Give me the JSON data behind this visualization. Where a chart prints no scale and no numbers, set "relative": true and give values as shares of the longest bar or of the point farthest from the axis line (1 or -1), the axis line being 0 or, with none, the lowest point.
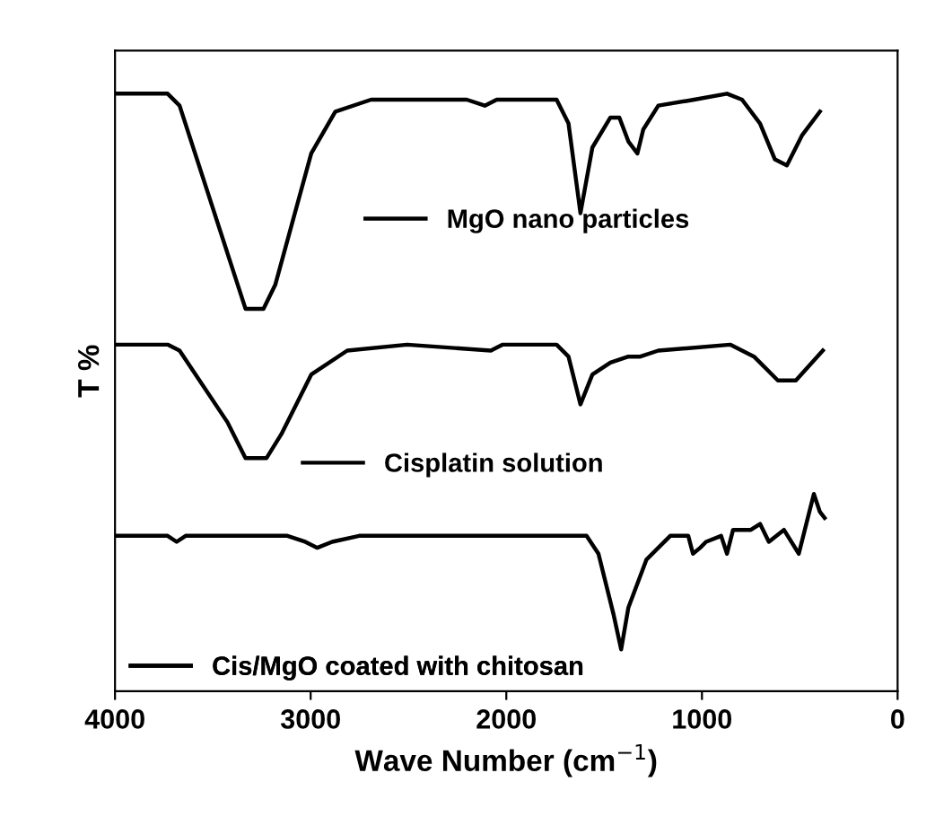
{
  "chart_data": {
    "type": "line",
    "relative": true,
    "xlabel": "Wave Number (cm$^{−1}$)",
    "ylabel": "T %",
    "xlim": [
      4000,
      0
    ],
    "xticks": [
      4000,
      3000,
      2000,
      1000,
      0
    ],
    "tick_labels": "x",
    "grid": false,
    "legend": "center",
    "line_style": "solid",
    "marker": "none",
    "series": [
      {
        "name": "MgO nano particles",
        "color": "#000000",
        "x": [
          3991,
          3731,
          3670,
          3333,
          3241,
          3181,
          2997,
          2874,
          2691,
          2507,
          2202,
          2110,
          2049,
          1835,
          1743,
          1682,
          1621,
          1560,
          1468,
          1422,
          1376,
          1330,
          1300,
          1223,
          1040,
          872,
          795,
          703,
          627,
          566,
          489,
          397
        ],
        "values": [
          1.0,
          1.0,
          0.98,
          0.64,
          0.64,
          0.68,
          0.9,
          0.97,
          0.99,
          0.99,
          0.99,
          0.98,
          0.99,
          0.99,
          0.99,
          0.95,
          0.8,
          0.91,
          0.96,
          0.96,
          0.92,
          0.9,
          0.94,
          0.98,
          0.99,
          1.0,
          0.99,
          0.95,
          0.89,
          0.88,
          0.93,
          0.97
        ]
      },
      {
        "name": "Cisplatin solution",
        "color": "#000000",
        "x": [
          3991,
          3731,
          3670,
          3425,
          3333,
          3226,
          3150,
          2997,
          2813,
          2507,
          2079,
          2018,
          1743,
          1682,
          1621,
          1560,
          1468,
          1376,
          1315,
          1223,
          856,
          734,
          612,
          581,
          520,
          382
        ],
        "values": [
          0.58,
          0.58,
          0.57,
          0.45,
          0.39,
          0.39,
          0.43,
          0.53,
          0.57,
          0.58,
          0.57,
          0.58,
          0.58,
          0.56,
          0.48,
          0.53,
          0.55,
          0.56,
          0.56,
          0.57,
          0.58,
          0.56,
          0.52,
          0.52,
          0.52,
          0.57
        ]
      },
      {
        "name": "Cis/MgO coated with chitosan",
        "color": "#000000",
        "x": [
          3991,
          3731,
          3685,
          3639,
          3119,
          3028,
          2966,
          2890,
          2752,
          2202,
          1743,
          1590,
          1529,
          1453,
          1413,
          1376,
          1284,
          1162,
          1070,
          1046,
          1009,
          979,
          902,
          872,
          841,
          750,
          703,
          658,
          581,
          505,
          459,
          428,
          397,
          373
        ],
        "values": [
          0.26,
          0.26,
          0.25,
          0.26,
          0.26,
          0.25,
          0.24,
          0.25,
          0.26,
          0.26,
          0.26,
          0.26,
          0.23,
          0.13,
          0.07,
          0.14,
          0.22,
          0.26,
          0.26,
          0.23,
          0.24,
          0.25,
          0.26,
          0.23,
          0.27,
          0.27,
          0.28,
          0.25,
          0.27,
          0.23,
          0.29,
          0.33,
          0.3,
          0.29
        ]
      }
    ]
  }
}
